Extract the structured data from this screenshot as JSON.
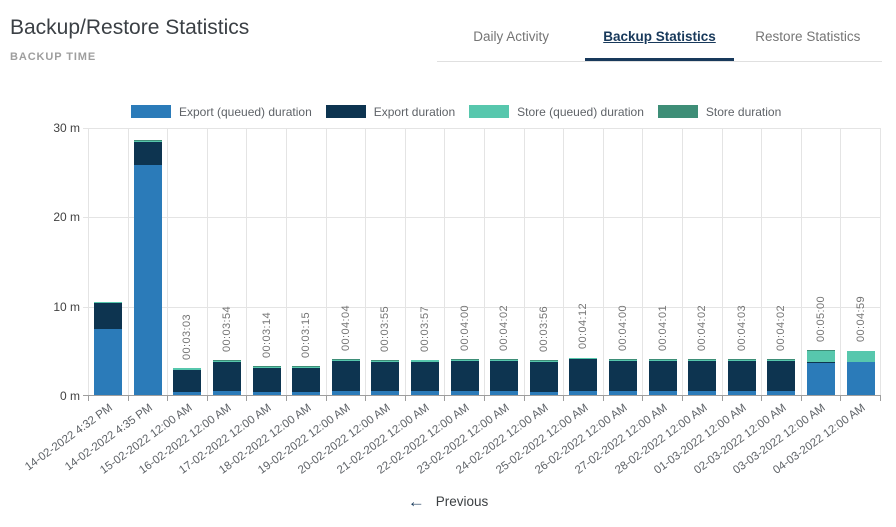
{
  "header": {
    "title": "Backup/Restore Statistics",
    "subtitle": "BACKUP TIME"
  },
  "tabs": {
    "items": [
      {
        "label": "Daily Activity",
        "active": false
      },
      {
        "label": "Backup Statistics",
        "active": true
      },
      {
        "label": "Restore Statistics",
        "active": false
      }
    ]
  },
  "pagination": {
    "previous_icon": "left-arrow",
    "previous_label": "Previous"
  },
  "colors": {
    "export_queued": "#2b7bb9",
    "export": "#0d3450",
    "store_queued": "#57c7ad",
    "store": "#3e8e77",
    "active_tab": "#18395b",
    "grid": "#e4e4e4",
    "axis": "#9e9e9e"
  },
  "chart_data": {
    "type": "bar",
    "stacked": true,
    "title": "BACKUP TIME",
    "xlabel": "",
    "ylabel": "",
    "unit": "minutes",
    "ylim": [
      0,
      30
    ],
    "grid": true,
    "legend_position": "top",
    "yticks": [
      {
        "value": 0,
        "label": "0 m"
      },
      {
        "value": 10,
        "label": "10 m"
      },
      {
        "value": 20,
        "label": "20 m"
      },
      {
        "value": 30,
        "label": "30 m"
      }
    ],
    "categories": [
      "14-02-2022 4:32 PM",
      "14-02-2022 4:35 PM",
      "15-02-2022 12:00 AM",
      "16-02-2022 12:00 AM",
      "17-02-2022 12:00 AM",
      "18-02-2022 12:00 AM",
      "19-02-2022 12:00 AM",
      "20-02-2022 12:00 AM",
      "21-02-2022 12:00 AM",
      "22-02-2022 12:00 AM",
      "23-02-2022 12:00 AM",
      "24-02-2022 12:00 AM",
      "25-02-2022 12:00 AM",
      "26-02-2022 12:00 AM",
      "27-02-2022 12:00 AM",
      "28-02-2022 12:00 AM",
      "01-03-2022 12:00 AM",
      "02-03-2022 12:00 AM",
      "03-03-2022 12:00 AM",
      "04-03-2022 12:00 AM"
    ],
    "bar_value_labels": [
      "",
      "",
      "00:03:03",
      "00:03:54",
      "00:03:14",
      "00:03:15",
      "00:04:04",
      "00:03:55",
      "00:03:57",
      "00:04:00",
      "00:04:02",
      "00:03:56",
      "00:04:12",
      "00:04:00",
      "00:04:01",
      "00:04:02",
      "00:04:03",
      "00:04:02",
      "00:05:00",
      "00:04:59"
    ],
    "series": [
      {
        "name": "Export (queued) duration",
        "color": "#2b7bb9",
        "values": [
          7.4,
          25.8,
          0.35,
          0.4,
          0.35,
          0.35,
          0.4,
          0.4,
          0.4,
          0.4,
          0.4,
          0.35,
          0.4,
          0.4,
          0.4,
          0.4,
          0.4,
          0.4,
          3.6,
          3.65
        ]
      },
      {
        "name": "Export duration",
        "color": "#0d3450",
        "values": [
          2.85,
          2.55,
          2.5,
          3.3,
          2.7,
          2.7,
          3.45,
          3.3,
          3.35,
          3.4,
          3.4,
          3.4,
          3.6,
          3.4,
          3.4,
          3.4,
          3.45,
          3.4,
          0.05,
          0.05
        ]
      },
      {
        "name": "Store (queued) duration",
        "color": "#57c7ad",
        "values": [
          0.12,
          0.12,
          0.12,
          0.12,
          0.12,
          0.12,
          0.12,
          0.12,
          0.12,
          0.12,
          0.15,
          0.1,
          0.12,
          0.12,
          0.14,
          0.15,
          0.12,
          0.15,
          1.25,
          1.2
        ]
      },
      {
        "name": "Store duration",
        "color": "#3e8e77",
        "values": [
          0.08,
          0.08,
          0.08,
          0.08,
          0.08,
          0.08,
          0.1,
          0.1,
          0.08,
          0.08,
          0.08,
          0.08,
          0.08,
          0.08,
          0.08,
          0.08,
          0.08,
          0.08,
          0.1,
          0.08
        ]
      }
    ]
  }
}
